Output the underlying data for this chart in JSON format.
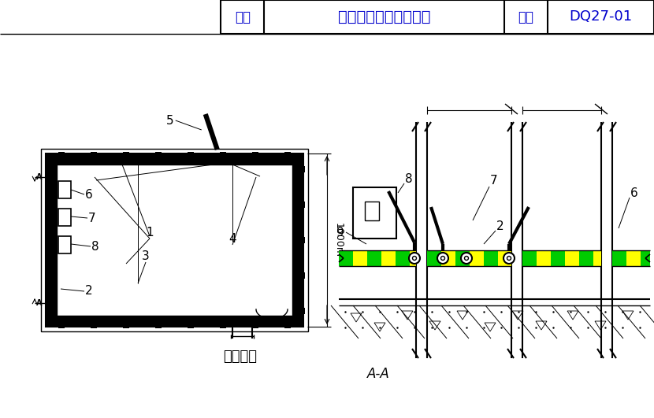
{
  "title_box": {
    "label1": "图名",
    "label2": "电井设备接地干线安装",
    "label3": "图号",
    "label4": "DQ27-01"
  },
  "bg_color": "#ffffff",
  "line_color": "#000000",
  "green_color": "#00cc00",
  "yellow_color": "#ffff00",
  "text_color": "#0000cc"
}
